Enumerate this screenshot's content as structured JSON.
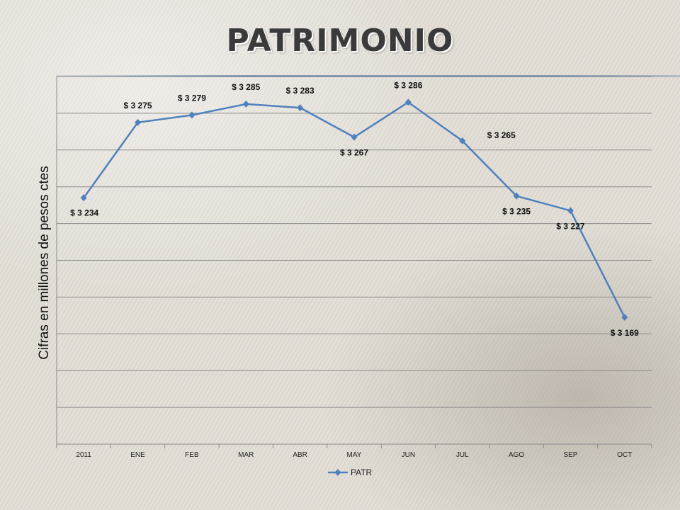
{
  "slide": {
    "title": "PATRIMONIO"
  },
  "chart_data": {
    "type": "line",
    "title": "",
    "xlabel": "",
    "ylabel": "Cifras en millones de pesos ctes",
    "categories": [
      "2011",
      "ENE",
      "FEB",
      "MAR",
      "ABR",
      "MAY",
      "JUN",
      "JUL",
      "AGO",
      "SEP",
      "OCT"
    ],
    "series": [
      {
        "name": "PATR",
        "values": [
          3234,
          3275,
          3279,
          3285,
          3283,
          3267,
          3286,
          3265,
          3235,
          3227,
          3169
        ],
        "labels": [
          "$ 3 234",
          "$ 3 275",
          "$ 3 279",
          "$ 3 285",
          "$ 3 283",
          "$ 3 267",
          "$ 3 286",
          "$ 3 265",
          "$ 3 235",
          "$ 3 227",
          "$ 3 169"
        ],
        "color": "#4f81bd"
      }
    ],
    "ylim": [
      3100,
      3300
    ],
    "grid": true,
    "legend": "bottom",
    "y_tick_labels_visible": false
  }
}
